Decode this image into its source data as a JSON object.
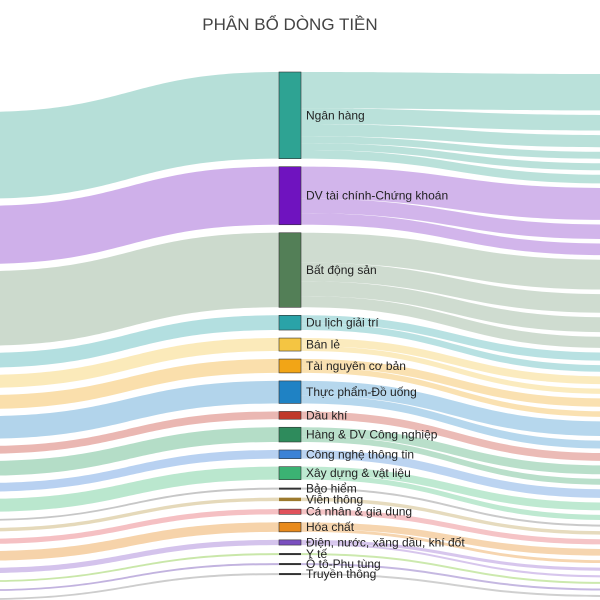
{
  "chart_data": {
    "type": "sankey",
    "title": "PHÂN BỔ DÒNG TIỀN",
    "nodes": [
      {
        "label": "Ngân hàng",
        "value": 100,
        "color": "#2ea393",
        "flow_color": "#a9d9d1",
        "out_shares": [
          0.42,
          0.18,
          0.14,
          0.08,
          0.08,
          0.1
        ]
      },
      {
        "label": "DV tài chính-Chứng khoán",
        "value": 67,
        "color": "#6f13bf",
        "flow_color": "#c7a2e6",
        "out_shares": [
          0.55,
          0.25,
          0.2
        ]
      },
      {
        "label": "Bất động sản",
        "value": 86,
        "color": "#537f57",
        "flow_color": "#c3d3c4",
        "out_shares": [
          0.4,
          0.25,
          0.2,
          0.15
        ]
      },
      {
        "label": "Du lịch giải trí",
        "value": 17,
        "color": "#2aa3a8",
        "flow_color": "#a6d9db",
        "out_shares": [
          0.55,
          0.45
        ]
      },
      {
        "label": "Bán lẻ",
        "value": 15,
        "color": "#f4c542",
        "flow_color": "#fae6ae",
        "out_shares": [
          0.6,
          0.4
        ]
      },
      {
        "label": "Tài nguyên cơ bản",
        "value": 16,
        "color": "#f2a516",
        "flow_color": "#f9d99d",
        "out_shares": [
          0.6,
          0.4
        ]
      },
      {
        "label": "Thực phẩm-Đồ uống",
        "value": 26,
        "color": "#1f82c4",
        "flow_color": "#a4cde8",
        "out_shares": [
          0.65,
          0.35
        ]
      },
      {
        "label": "Dầu khí",
        "value": 9,
        "color": "#c0392b",
        "flow_color": "#e6aaa4",
        "out_shares": [
          1.0
        ]
      },
      {
        "label": "Hàng & DV Công nghiệp",
        "value": 17,
        "color": "#2e8b5c",
        "flow_color": "#a7d7bd",
        "out_shares": [
          0.6,
          0.4
        ]
      },
      {
        "label": "Công nghệ thông tin",
        "value": 10,
        "color": "#3b82d6",
        "flow_color": "#abc9ee",
        "out_shares": [
          1.0
        ]
      },
      {
        "label": "Xây dựng & vật liệu",
        "value": 15,
        "color": "#3bb273",
        "flow_color": "#aee3c6",
        "out_shares": [
          0.6,
          0.4
        ]
      },
      {
        "label": "Bảo hiểm",
        "value": 2,
        "color": "#333333",
        "flow_color": "#bdbdbd",
        "out_shares": [
          1.0
        ]
      },
      {
        "label": "Viễn thông",
        "value": 4,
        "color": "#9c7a2e",
        "flow_color": "#e0d2ae",
        "out_shares": [
          1.0
        ]
      },
      {
        "label": "Cá nhân & gia dụng",
        "value": 6,
        "color": "#e0525b",
        "flow_color": "#f3b5b8",
        "out_shares": [
          1.0
        ]
      },
      {
        "label": "Hóa chất",
        "value": 11,
        "color": "#e88a1c",
        "flow_color": "#f4cb9b",
        "out_shares": [
          0.7,
          0.3
        ]
      },
      {
        "label": "Điện, nước, xăng dầu, khí đốt",
        "value": 6,
        "color": "#7a4fbf",
        "flow_color": "#cdb8e9",
        "out_shares": [
          0.6,
          0.4
        ]
      },
      {
        "label": "Y tế",
        "value": 2,
        "color": "#333333",
        "flow_color": "#bfe39a",
        "out_shares": [
          1.0
        ]
      },
      {
        "label": "Ô tô-Phụ tùng",
        "value": 2,
        "color": "#333333",
        "flow_color": "#b7a6d9",
        "out_shares": [
          1.0
        ]
      },
      {
        "label": "Truyền thông",
        "value": 2,
        "color": "#333333",
        "flow_color": "#c4c4c4",
        "out_shares": [
          1.0
        ]
      }
    ]
  }
}
